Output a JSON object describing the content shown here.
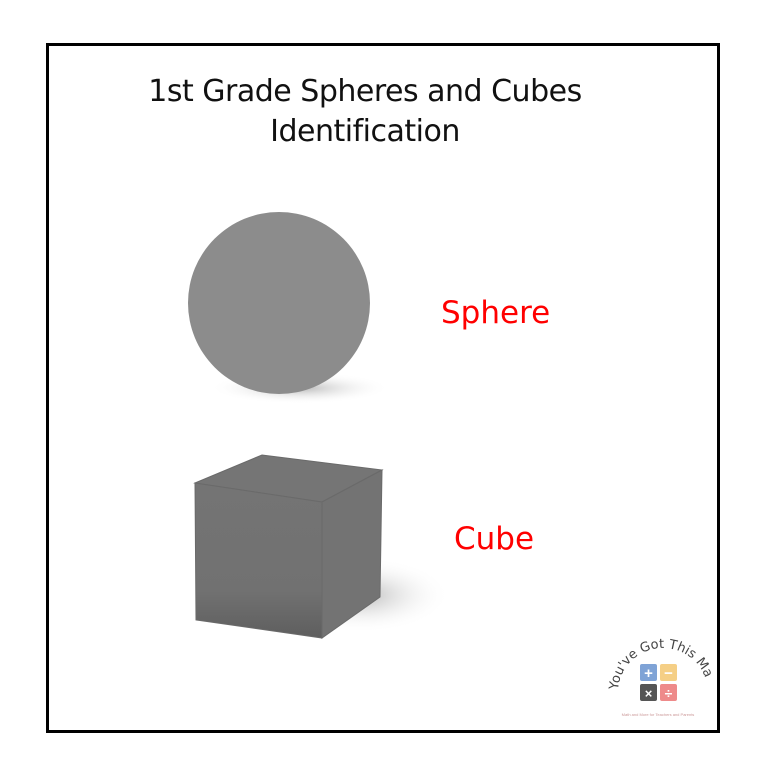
{
  "worksheet": {
    "title_line1": "1st Grade Spheres and Cubes",
    "title_line2": "Identification",
    "items": [
      {
        "shape": "sphere",
        "label": "Sphere"
      },
      {
        "shape": "cube",
        "label": "Cube"
      }
    ],
    "label_color": "#ff0000",
    "shape_color": "#8c8c8c"
  },
  "logo": {
    "text": "You've Got This Math",
    "tagline": "Math and More for Teachers and Parents",
    "tile_colors": [
      "#7fa3d6",
      "#f5cf86",
      "#555555",
      "#ee8a8a"
    ]
  }
}
